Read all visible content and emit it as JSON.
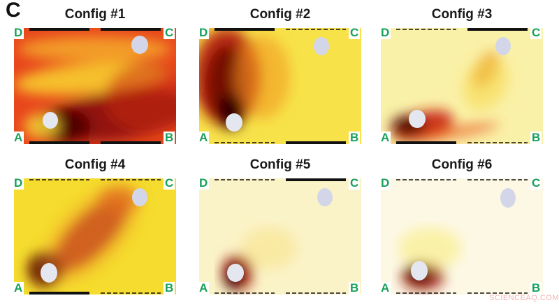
{
  "panel_letter": "C",
  "corner_labels": {
    "a": "A",
    "b": "B",
    "c": "C",
    "d": "D"
  },
  "configs": [
    {
      "title": "Config #1",
      "walls": {
        "top_left": "solid",
        "top_right": "solid",
        "bottom_left": "solid",
        "bottom_right": "solid"
      },
      "background": "#e8461c"
    },
    {
      "title": "Config #2",
      "walls": {
        "top_left": "solid",
        "top_right": "dashed",
        "bottom_left": "dashed",
        "bottom_right": "solid"
      },
      "background": "#f7e24a"
    },
    {
      "title": "Config #3",
      "walls": {
        "top_left": "dashed",
        "top_right": "solid",
        "bottom_left": "solid",
        "bottom_right": "dashed"
      },
      "background": "#faf1a8"
    },
    {
      "title": "Config #4",
      "walls": {
        "top_left": "dashed",
        "top_right": "dashed",
        "bottom_left": "solid",
        "bottom_right": "dashed"
      },
      "background": "#f5dc2e"
    },
    {
      "title": "Config #5",
      "walls": {
        "top_left": "dashed",
        "top_right": "solid",
        "bottom_left": "dashed",
        "bottom_right": "dashed"
      },
      "background": "#fbf3c8"
    },
    {
      "title": "Config #6",
      "walls": {
        "top_left": "dashed",
        "top_right": "dashed",
        "bottom_left": "dashed",
        "bottom_right": "dashed"
      },
      "background": "#fdf8e4"
    }
  ],
  "watermark": "SCIENCEAQ.COM"
}
